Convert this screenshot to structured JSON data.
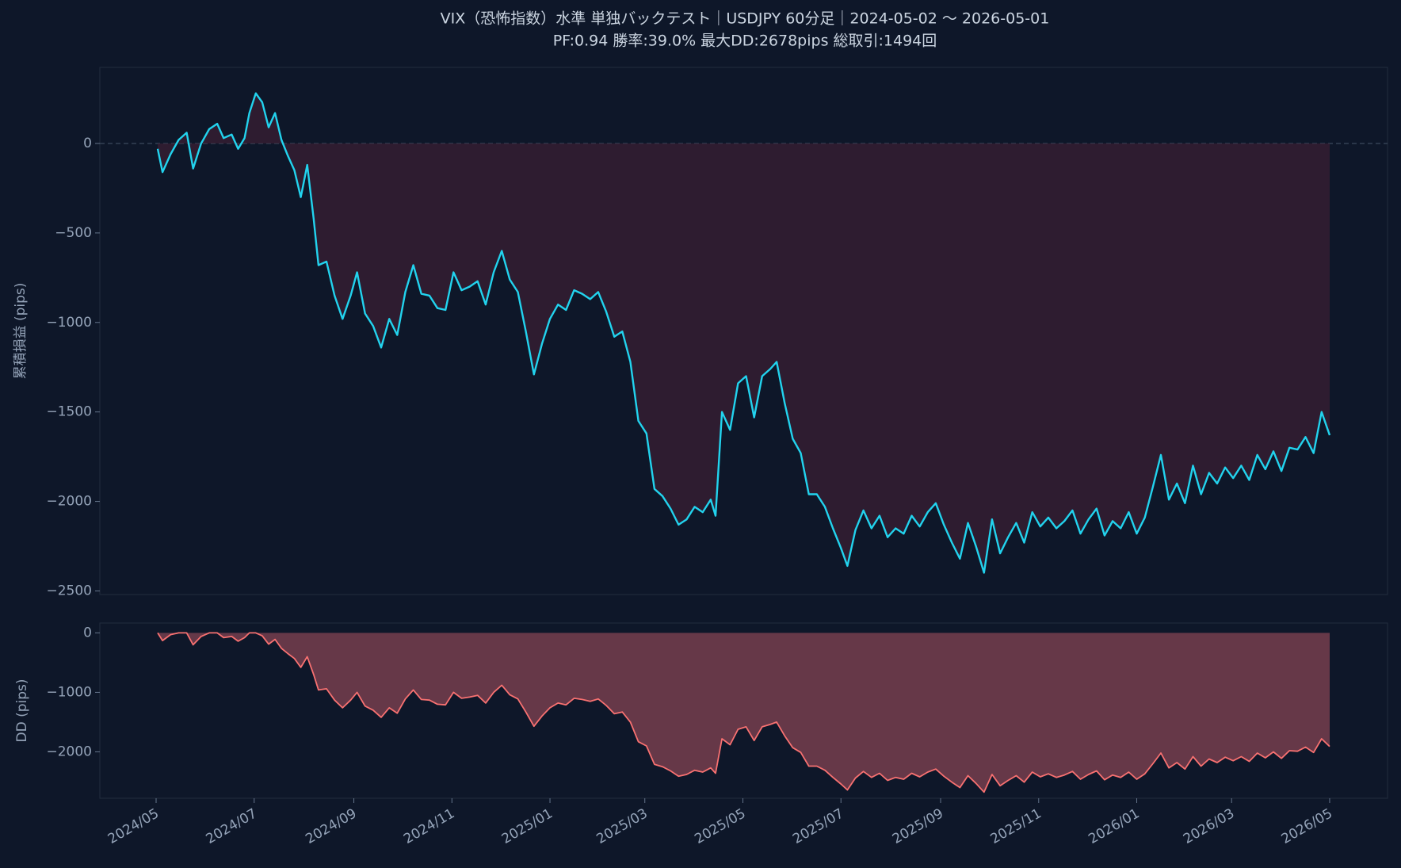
{
  "chart_data": [
    {
      "type": "line",
      "title": "VIX（恐怖指数）水準 単独バックテスト｜USDJPY 60分足｜2024-05-02 〜 2026-05-01",
      "subtitle": "PF:0.94  勝率:39.0%  最大DD:2678pips  総取引:1494回",
      "ylabel": "累積損益 (pips)",
      "color": "#22d3ee",
      "fill_color": "#3a1f33",
      "zero_line": true,
      "xlim": [
        "2024-03-27",
        "2026-06-06"
      ],
      "ylim": [
        -2520,
        425
      ],
      "yticks": [
        {
          "value": -2500,
          "label": "−2500"
        },
        {
          "value": -2000,
          "label": "−2000"
        },
        {
          "value": -1500,
          "label": "−1500"
        },
        {
          "value": -1000,
          "label": "−1000"
        },
        {
          "value": -500,
          "label": "−500"
        },
        0
      ],
      "x": [
        "2024-05-02",
        "2024-05-05",
        "2024-05-10",
        "2024-05-15",
        "2024-05-20",
        "2024-05-24",
        "2024-05-29",
        "2024-06-03",
        "2024-06-08",
        "2024-06-12",
        "2024-06-17",
        "2024-06-21",
        "2024-06-25",
        "2024-06-28",
        "2024-07-02",
        "2024-07-06",
        "2024-07-10",
        "2024-07-14",
        "2024-07-18",
        "2024-07-22",
        "2024-07-26",
        "2024-07-30",
        "2024-08-03",
        "2024-08-07",
        "2024-08-10",
        "2024-08-15",
        "2024-08-20",
        "2024-08-25",
        "2024-08-30",
        "2024-09-03",
        "2024-09-08",
        "2024-09-13",
        "2024-09-18",
        "2024-09-23",
        "2024-09-28",
        "2024-10-03",
        "2024-10-08",
        "2024-10-13",
        "2024-10-18",
        "2024-10-23",
        "2024-10-28",
        "2024-11-02",
        "2024-11-07",
        "2024-11-12",
        "2024-11-17",
        "2024-11-22",
        "2024-11-27",
        "2024-12-02",
        "2024-12-07",
        "2024-12-12",
        "2024-12-17",
        "2024-12-22",
        "2024-12-27",
        "2025-01-01",
        "2025-01-06",
        "2025-01-11",
        "2025-01-16",
        "2025-01-21",
        "2025-01-26",
        "2025-01-31",
        "2025-02-05",
        "2025-02-10",
        "2025-02-15",
        "2025-02-20",
        "2025-02-25",
        "2025-03-02",
        "2025-03-07",
        "2025-03-12",
        "2025-03-17",
        "2025-03-22",
        "2025-03-27",
        "2025-04-01",
        "2025-04-06",
        "2025-04-11",
        "2025-04-14",
        "2025-04-18",
        "2025-04-23",
        "2025-04-28",
        "2025-05-03",
        "2025-05-08",
        "2025-05-13",
        "2025-05-18",
        "2025-05-22",
        "2025-05-27",
        "2025-06-01",
        "2025-06-06",
        "2025-06-11",
        "2025-06-16",
        "2025-06-21",
        "2025-06-26",
        "2025-07-01",
        "2025-07-05",
        "2025-07-10",
        "2025-07-15",
        "2025-07-20",
        "2025-07-25",
        "2025-07-30",
        "2025-08-04",
        "2025-08-09",
        "2025-08-14",
        "2025-08-19",
        "2025-08-24",
        "2025-08-29",
        "2025-09-03",
        "2025-09-08",
        "2025-09-13",
        "2025-09-18",
        "2025-09-23",
        "2025-09-28",
        "2025-10-03",
        "2025-10-08",
        "2025-10-13",
        "2025-10-18",
        "2025-10-23",
        "2025-10-28",
        "2025-11-02",
        "2025-11-07",
        "2025-11-12",
        "2025-11-17",
        "2025-11-22",
        "2025-11-27",
        "2025-12-02",
        "2025-12-07",
        "2025-12-12",
        "2025-12-17",
        "2025-12-22",
        "2025-12-27",
        "2026-01-01",
        "2026-01-06",
        "2026-01-11",
        "2026-01-16",
        "2026-01-21",
        "2026-01-26",
        "2026-01-31",
        "2026-02-05",
        "2026-02-10",
        "2026-02-15",
        "2026-02-20",
        "2026-02-25",
        "2026-03-02",
        "2026-03-07",
        "2026-03-12",
        "2026-03-17",
        "2026-03-22",
        "2026-03-27",
        "2026-04-01",
        "2026-04-06",
        "2026-04-11",
        "2026-04-16",
        "2026-04-21",
        "2026-04-26",
        "2026-05-01"
      ],
      "values": [
        -30,
        -160,
        -60,
        20,
        60,
        -140,
        0,
        80,
        110,
        30,
        50,
        -30,
        30,
        170,
        280,
        230,
        90,
        170,
        20,
        -70,
        -150,
        -300,
        -120,
        -420,
        -680,
        -660,
        -850,
        -980,
        -850,
        -720,
        -950,
        -1020,
        -1140,
        -980,
        -1070,
        -830,
        -680,
        -840,
        -850,
        -920,
        -930,
        -720,
        -820,
        -800,
        -770,
        -900,
        -720,
        -600,
        -760,
        -830,
        -1050,
        -1290,
        -1120,
        -980,
        -900,
        -930,
        -820,
        -840,
        -870,
        -830,
        -940,
        -1080,
        -1050,
        -1220,
        -1550,
        -1620,
        -1930,
        -1970,
        -2040,
        -2130,
        -2100,
        -2030,
        -2060,
        -1990,
        -2080,
        -1500,
        -1600,
        -1340,
        -1300,
        -1530,
        -1300,
        -1260,
        -1220,
        -1450,
        -1650,
        -1730,
        -1960,
        -1960,
        -2030,
        -2150,
        -2260,
        -2360,
        -2160,
        -2050,
        -2150,
        -2080,
        -2200,
        -2150,
        -2180,
        -2080,
        -2140,
        -2060,
        -2010,
        -2130,
        -2230,
        -2320,
        -2120,
        -2250,
        -2398,
        -2100,
        -2290,
        -2200,
        -2120,
        -2230,
        -2060,
        -2140,
        -2090,
        -2150,
        -2110,
        -2050,
        -2180,
        -2100,
        -2040,
        -2190,
        -2110,
        -2150,
        -2060,
        -2180,
        -2090,
        -1920,
        -1740,
        -1990,
        -1900,
        -2010,
        -1800,
        -1960,
        -1840,
        -1900,
        -1810,
        -1870,
        -1800,
        -1880,
        -1740,
        -1820,
        -1720,
        -1830,
        -1700,
        -1710,
        -1640,
        -1730,
        -1500,
        -1630
      ]
    },
    {
      "type": "area",
      "ylabel": "DD (pips)",
      "color": "#f87171",
      "fill_color": "#6b3a4a",
      "xlim": [
        "2024-03-27",
        "2026-06-06"
      ],
      "ylim": [
        -2780,
        165
      ],
      "yticks": [
        {
          "value": -2000,
          "label": "−2000"
        },
        {
          "value": -1000,
          "label": "−1000"
        },
        0
      ],
      "xticks": [
        {
          "value": "2024-05-01",
          "label": "2024/05"
        },
        {
          "value": "2024-07-01",
          "label": "2024/07"
        },
        {
          "value": "2024-09-01",
          "label": "2024/09"
        },
        {
          "value": "2024-11-01",
          "label": "2024/11"
        },
        {
          "value": "2025-01-01",
          "label": "2025/01"
        },
        {
          "value": "2025-03-01",
          "label": "2025/03"
        },
        {
          "value": "2025-05-01",
          "label": "2025/05"
        },
        {
          "value": "2025-07-01",
          "label": "2025/07"
        },
        {
          "value": "2025-09-01",
          "label": "2025/09"
        },
        {
          "value": "2025-11-01",
          "label": "2025/11"
        },
        {
          "value": "2026-01-01",
          "label": "2026/01"
        },
        {
          "value": "2026-03-01",
          "label": "2026/03"
        },
        {
          "value": "2026-05-01",
          "label": "2026/05"
        }
      ],
      "x": [
        "2024-05-02",
        "2024-05-05",
        "2024-05-10",
        "2024-05-15",
        "2024-05-20",
        "2024-05-24",
        "2024-05-29",
        "2024-06-03",
        "2024-06-08",
        "2024-06-12",
        "2024-06-17",
        "2024-06-21",
        "2024-06-25",
        "2024-06-28",
        "2024-07-02",
        "2024-07-06",
        "2024-07-10",
        "2024-07-14",
        "2024-07-18",
        "2024-07-22",
        "2024-07-26",
        "2024-07-30",
        "2024-08-03",
        "2024-08-07",
        "2024-08-10",
        "2024-08-15",
        "2024-08-20",
        "2024-08-25",
        "2024-08-30",
        "2024-09-03",
        "2024-09-08",
        "2024-09-13",
        "2024-09-18",
        "2024-09-23",
        "2024-09-28",
        "2024-10-03",
        "2024-10-08",
        "2024-10-13",
        "2024-10-18",
        "2024-10-23",
        "2024-10-28",
        "2024-11-02",
        "2024-11-07",
        "2024-11-12",
        "2024-11-17",
        "2024-11-22",
        "2024-11-27",
        "2024-12-02",
        "2024-12-07",
        "2024-12-12",
        "2024-12-17",
        "2024-12-22",
        "2024-12-27",
        "2025-01-01",
        "2025-01-06",
        "2025-01-11",
        "2025-01-16",
        "2025-01-21",
        "2025-01-26",
        "2025-01-31",
        "2025-02-05",
        "2025-02-10",
        "2025-02-15",
        "2025-02-20",
        "2025-02-25",
        "2025-03-02",
        "2025-03-07",
        "2025-03-12",
        "2025-03-17",
        "2025-03-22",
        "2025-03-27",
        "2025-04-01",
        "2025-04-06",
        "2025-04-11",
        "2025-04-14",
        "2025-04-18",
        "2025-04-23",
        "2025-04-28",
        "2025-05-03",
        "2025-05-08",
        "2025-05-13",
        "2025-05-18",
        "2025-05-22",
        "2025-05-27",
        "2025-06-01",
        "2025-06-06",
        "2025-06-11",
        "2025-06-16",
        "2025-06-21",
        "2025-06-26",
        "2025-07-01",
        "2025-07-05",
        "2025-07-10",
        "2025-07-15",
        "2025-07-20",
        "2025-07-25",
        "2025-07-30",
        "2025-08-04",
        "2025-08-09",
        "2025-08-14",
        "2025-08-19",
        "2025-08-24",
        "2025-08-29",
        "2025-09-03",
        "2025-09-08",
        "2025-09-13",
        "2025-09-18",
        "2025-09-23",
        "2025-09-28",
        "2025-10-03",
        "2025-10-08",
        "2025-10-13",
        "2025-10-18",
        "2025-10-23",
        "2025-10-28",
        "2025-11-02",
        "2025-11-07",
        "2025-11-12",
        "2025-11-17",
        "2025-11-22",
        "2025-11-27",
        "2025-12-02",
        "2025-12-07",
        "2025-12-12",
        "2025-12-17",
        "2025-12-22",
        "2025-12-27",
        "2026-01-01",
        "2026-01-06",
        "2026-01-11",
        "2026-01-16",
        "2026-01-21",
        "2026-01-26",
        "2026-01-31",
        "2026-02-05",
        "2026-02-10",
        "2026-02-15",
        "2026-02-20",
        "2026-02-25",
        "2026-03-02",
        "2026-03-07",
        "2026-03-12",
        "2026-03-17",
        "2026-03-22",
        "2026-03-27",
        "2026-04-01",
        "2026-04-06",
        "2026-04-11",
        "2026-04-16",
        "2026-04-21",
        "2026-04-26",
        "2026-05-01"
      ],
      "values": [
        0,
        -130,
        -30,
        0,
        0,
        -200,
        -60,
        0,
        0,
        -80,
        -60,
        -140,
        -80,
        0,
        0,
        -50,
        -190,
        -110,
        -260,
        -350,
        -430,
        -580,
        -400,
        -700,
        -960,
        -940,
        -1130,
        -1260,
        -1130,
        -1000,
        -1230,
        -1300,
        -1420,
        -1260,
        -1350,
        -1110,
        -960,
        -1120,
        -1130,
        -1200,
        -1210,
        -1000,
        -1100,
        -1080,
        -1050,
        -1180,
        -1000,
        -880,
        -1040,
        -1110,
        -1330,
        -1570,
        -1400,
        -1260,
        -1180,
        -1210,
        -1100,
        -1120,
        -1150,
        -1110,
        -1220,
        -1360,
        -1330,
        -1500,
        -1830,
        -1900,
        -2210,
        -2250,
        -2320,
        -2410,
        -2380,
        -2310,
        -2340,
        -2270,
        -2360,
        -1780,
        -1880,
        -1620,
        -1580,
        -1810,
        -1580,
        -1540,
        -1500,
        -1730,
        -1930,
        -2010,
        -2240,
        -2240,
        -2310,
        -2430,
        -2540,
        -2640,
        -2440,
        -2330,
        -2430,
        -2360,
        -2480,
        -2430,
        -2460,
        -2360,
        -2420,
        -2340,
        -2290,
        -2410,
        -2510,
        -2600,
        -2400,
        -2530,
        -2678,
        -2380,
        -2570,
        -2480,
        -2400,
        -2510,
        -2340,
        -2420,
        -2370,
        -2430,
        -2390,
        -2330,
        -2460,
        -2380,
        -2320,
        -2470,
        -2390,
        -2430,
        -2340,
        -2460,
        -2370,
        -2200,
        -2020,
        -2270,
        -2180,
        -2290,
        -2080,
        -2240,
        -2120,
        -2180,
        -2090,
        -2150,
        -2080,
        -2160,
        -2020,
        -2100,
        -2000,
        -2110,
        -1980,
        -1990,
        -1920,
        -2010,
        -1780,
        -1910
      ]
    }
  ]
}
